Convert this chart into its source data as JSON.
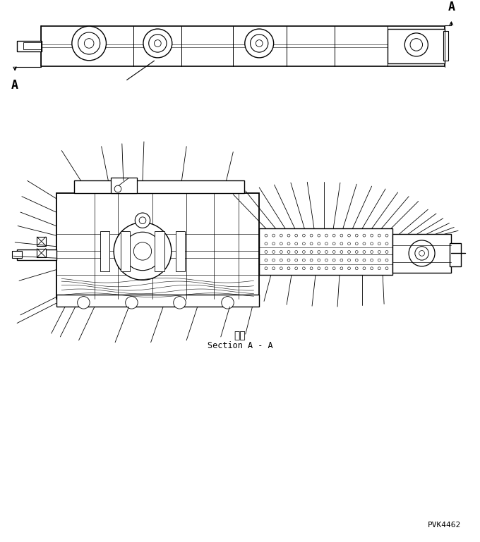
{
  "background_color": "#ffffff",
  "line_color": "#000000",
  "fig_width": 6.8,
  "fig_height": 7.69,
  "dpi": 100,
  "section_label_jp": "断面",
  "section_label_en": "Section A - A",
  "part_number": "PVK4462"
}
